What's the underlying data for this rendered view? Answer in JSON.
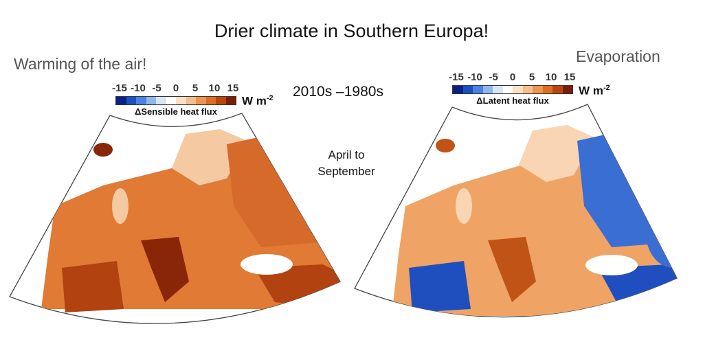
{
  "title": "Drier climate in Southern Europa!",
  "left_heading": "Warming of the air!",
  "right_heading": "Evaporation",
  "period": "2010s –1980s",
  "season_line1": "April to",
  "season_line2": "September",
  "colorbar": {
    "ticks": [
      "-15",
      "-10",
      "-5",
      "0",
      "5",
      "10",
      "15"
    ],
    "unit": "W m",
    "unit_exponent": "-2",
    "colors": [
      "#08208a",
      "#1d4fc4",
      "#4a82e3",
      "#8fb7ee",
      "#d7e6f7",
      "#ffffff",
      "#fbe1c6",
      "#f7be8c",
      "#ee9550",
      "#de6d23",
      "#b9460f",
      "#7a1e08"
    ]
  },
  "maps": [
    {
      "name": "sensible",
      "label": "ΔSensible heat flux",
      "mean_color": "#e38742",
      "colors": {
        "north": "#f5c9a2",
        "center": "#e07a34",
        "south": "#b2420f",
        "east": "#d56a2a",
        "spots": "#8a2608"
      }
    },
    {
      "name": "latent",
      "label": "ΔLatent heat flux",
      "mean_color": "#f0ad74",
      "colors": {
        "north": "#f9d5b4",
        "center": "#efa465",
        "south": "#1f4fbf",
        "east": "#3a6ed2",
        "spots": "#c05416"
      }
    }
  ]
}
